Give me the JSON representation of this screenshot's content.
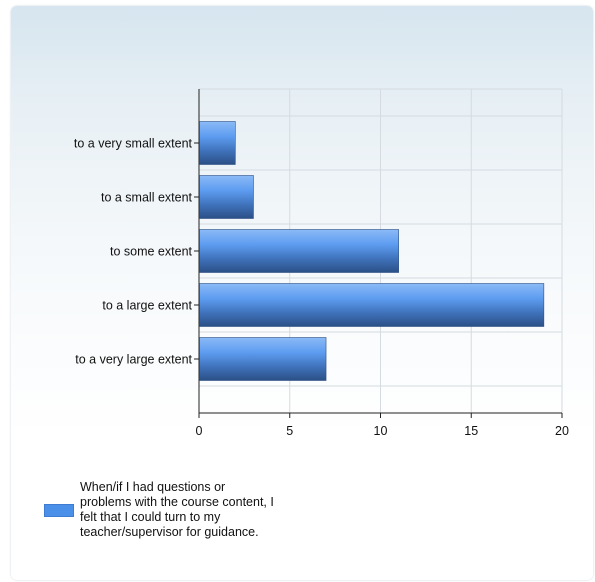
{
  "chart_data": {
    "type": "bar",
    "orientation": "horizontal",
    "categories": [
      "to a very small extent",
      "to a small extent",
      "to some extent",
      "to a large extent",
      "to a very large extent"
    ],
    "series": [
      {
        "name": "When/if I had questions or problems with the course content, I felt that I could turn to my teacher/supervisor for guidance.",
        "values": [
          2,
          3,
          11,
          19,
          7
        ],
        "color": "#4a8fe8"
      }
    ],
    "xlim": [
      0,
      20
    ],
    "xticks": [
      "0",
      "5",
      "10",
      "15",
      "20"
    ],
    "grid": true,
    "legend_position": "bottom-left"
  }
}
